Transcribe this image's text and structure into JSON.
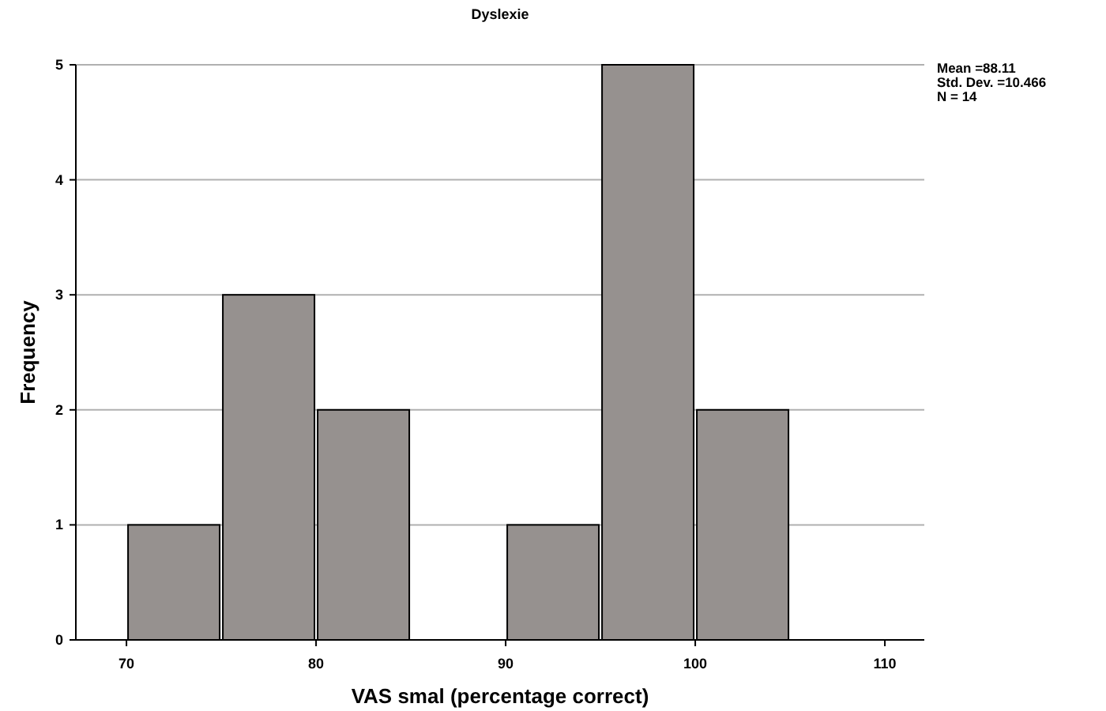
{
  "chart_data": {
    "type": "histogram",
    "title": "Dyslexie",
    "xlabel": "VAS smal (percentage correct)",
    "ylabel": "Frequency",
    "bins": [
      70,
      75,
      80,
      85,
      90,
      95,
      100,
      105
    ],
    "values": [
      1,
      3,
      2,
      0,
      1,
      5,
      2
    ],
    "color": "#96918f",
    "xlim": [
      67.33,
      112.08
    ],
    "xticks": [
      70,
      80,
      90,
      100,
      110
    ],
    "ylim": [
      0,
      5
    ],
    "yticks": [
      0,
      1,
      2,
      3,
      4,
      5
    ],
    "grid": "y",
    "annotations": [
      "Mean =88.11",
      "Std. Dev. =10.466",
      "N = 14"
    ]
  }
}
